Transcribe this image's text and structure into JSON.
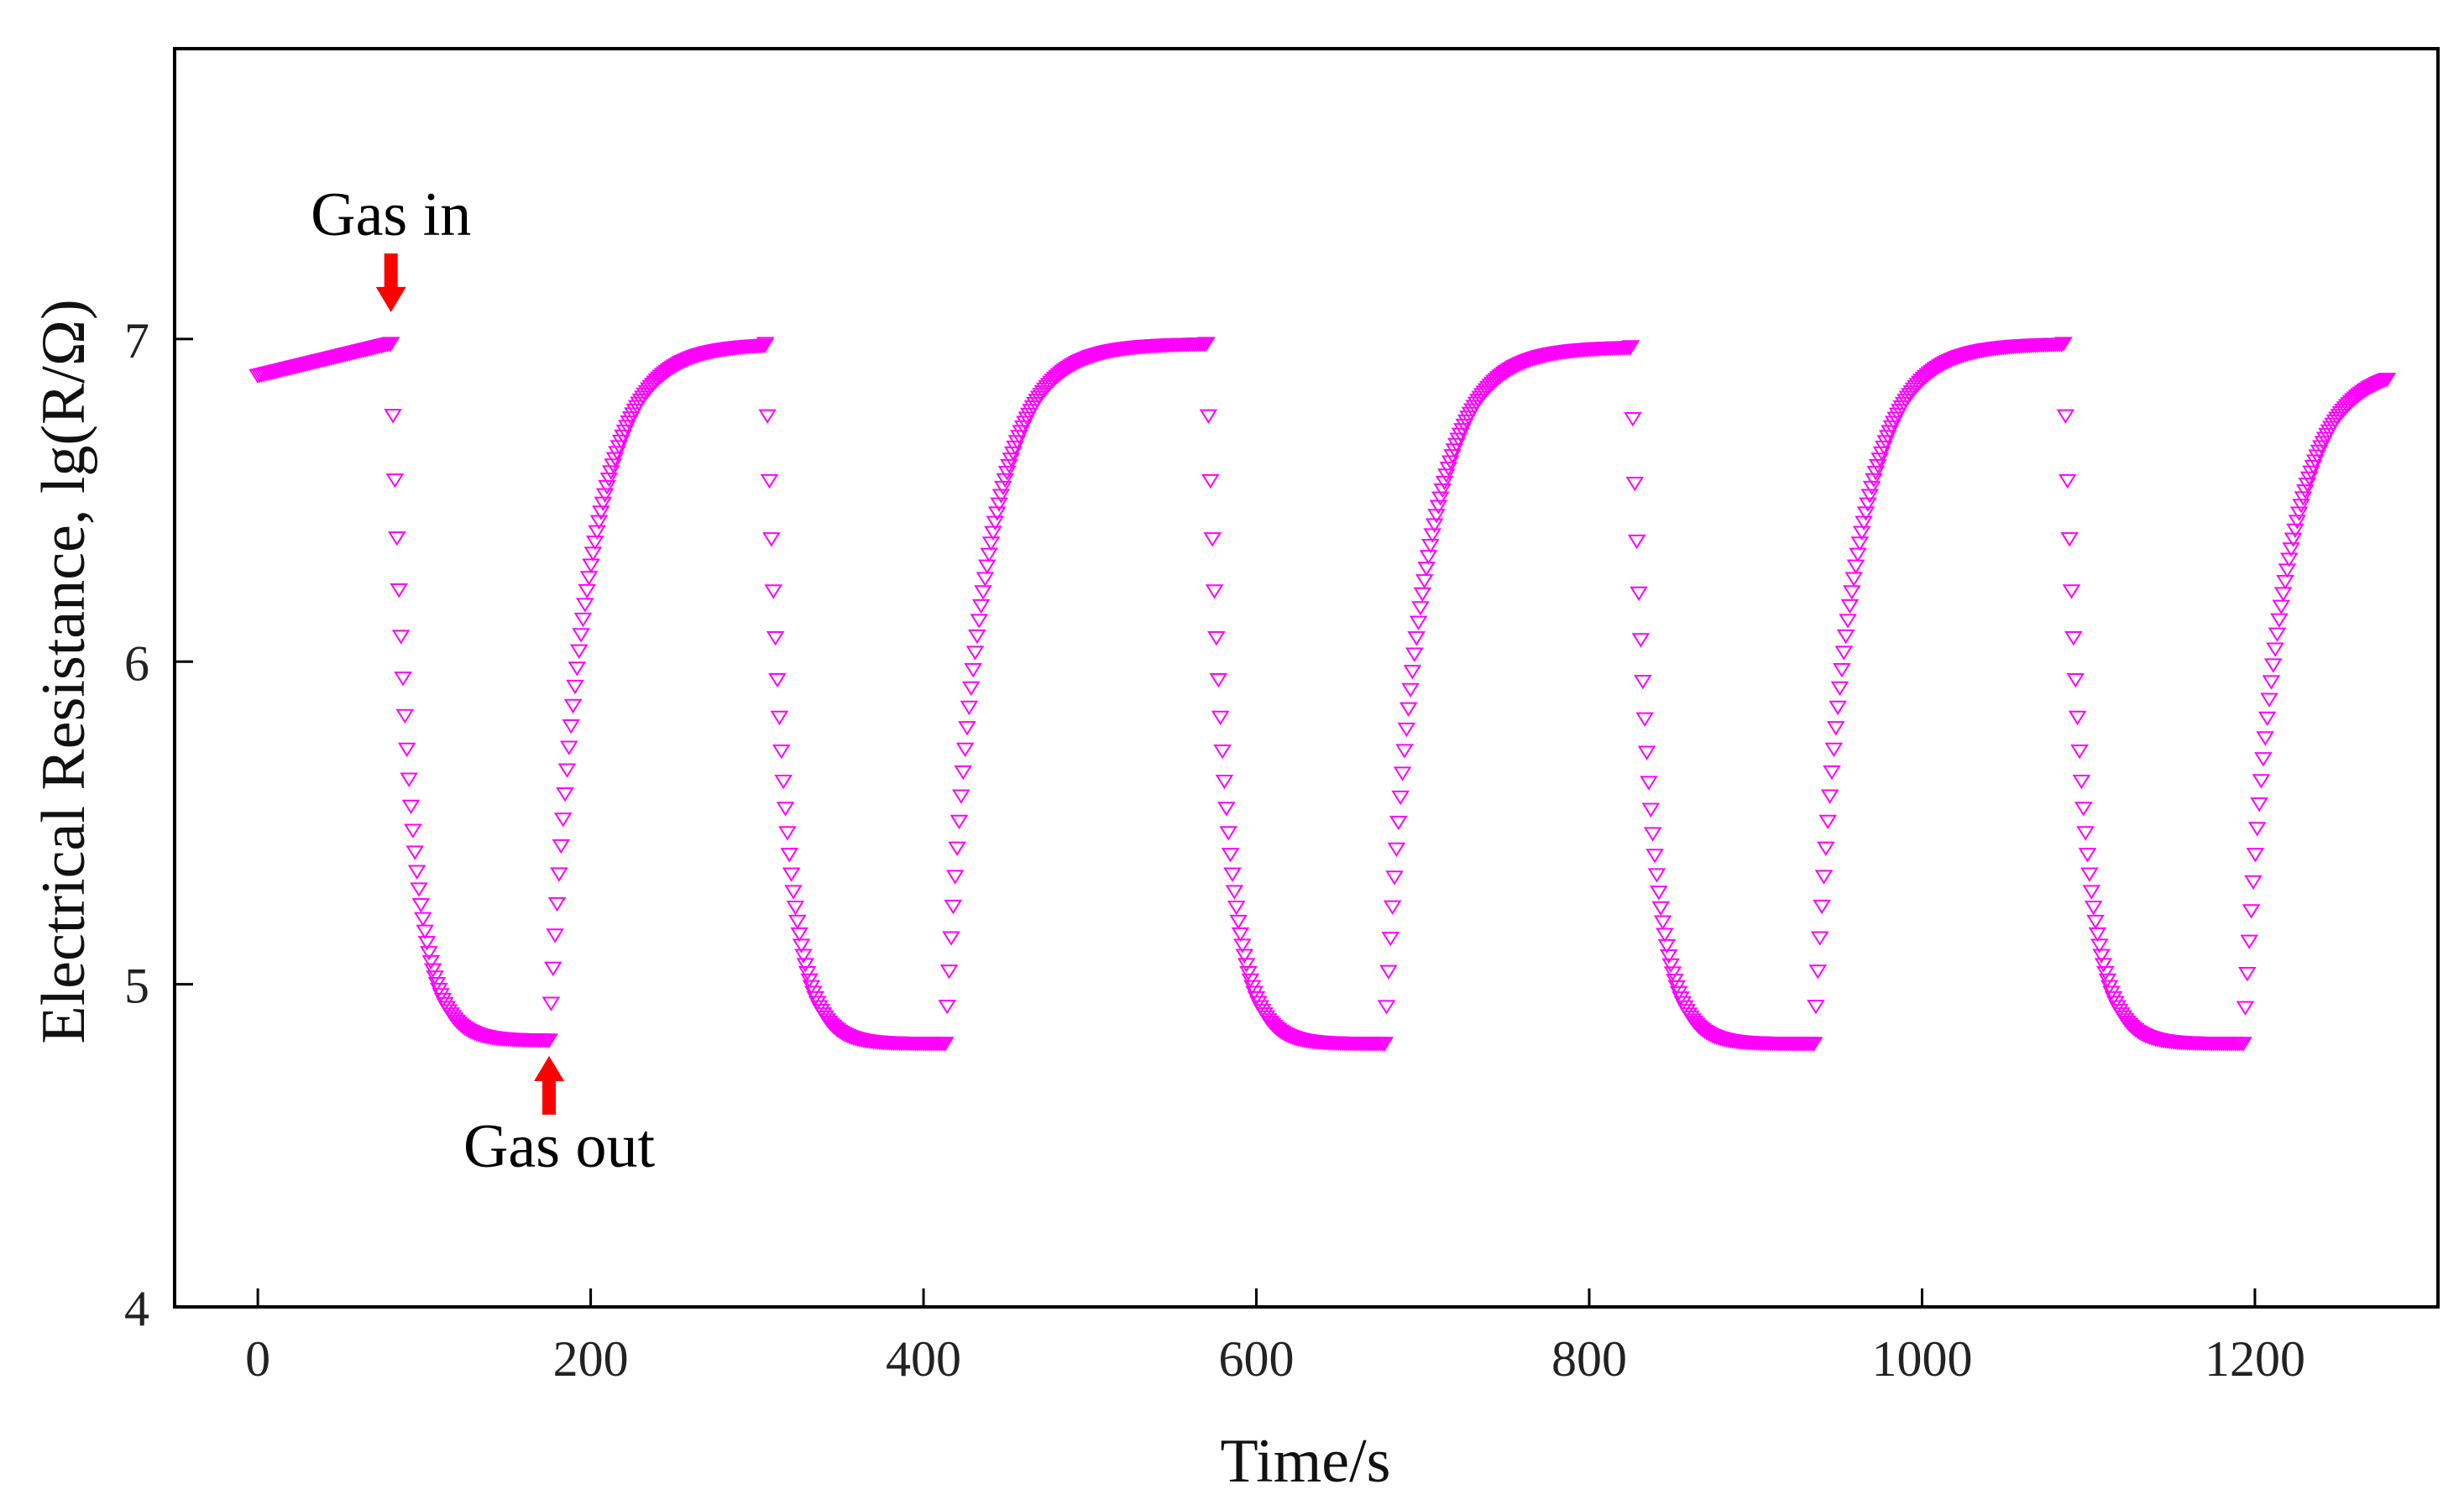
{
  "chart_data": {
    "type": "scatter",
    "title": "",
    "xlabel": "Time/s",
    "ylabel": "Electrical Resistance,  lg(R/Ω)",
    "xlim": [
      -50,
      1310
    ],
    "ylim": [
      4,
      7.9
    ],
    "xticks": [
      0,
      200,
      400,
      600,
      800,
      1000,
      1200
    ],
    "yticks": [
      4,
      5,
      6,
      7
    ],
    "xtick_labels": [
      "0",
      "200",
      "400",
      "600",
      "800",
      "1000",
      "1200"
    ],
    "ytick_labels": [
      "4",
      "5",
      "6",
      "7"
    ],
    "grid": false,
    "legend": "none",
    "marker": "open-down-triangle",
    "series": [
      {
        "name": "Electrical Resistance",
        "color": "#ff00ff",
        "cycles": [
          {
            "recovery_start": 0,
            "gas_in": 80,
            "gas_out": 175,
            "start_value": 6.89,
            "high": 6.99,
            "low": 4.83
          },
          {
            "recovery_start": 175,
            "gas_in": 305,
            "gas_out": 413,
            "start_value": 4.83,
            "high": 6.99,
            "low": 4.82
          },
          {
            "recovery_start": 413,
            "gas_in": 570,
            "gas_out": 677,
            "start_value": 4.82,
            "high": 6.99,
            "low": 4.82
          },
          {
            "recovery_start": 677,
            "gas_in": 825,
            "gas_out": 935,
            "start_value": 4.82,
            "high": 6.98,
            "low": 4.82
          },
          {
            "recovery_start": 935,
            "gas_in": 1085,
            "gas_out": 1193,
            "start_value": 4.82,
            "high": 6.99,
            "low": 4.82
          },
          {
            "recovery_start": 1193,
            "gas_in": null,
            "gas_out": null,
            "end": 1280,
            "start_value": 4.82,
            "high": 6.92,
            "low": null
          }
        ]
      }
    ],
    "annotations": [
      {
        "text": "Gas in",
        "x": 80,
        "y": 7.0,
        "arrow": "down",
        "arrow_color": "#ff0000"
      },
      {
        "text": "Gas out",
        "x": 175,
        "y": 4.83,
        "arrow": "up",
        "arrow_color": "#ff0000"
      }
    ]
  }
}
